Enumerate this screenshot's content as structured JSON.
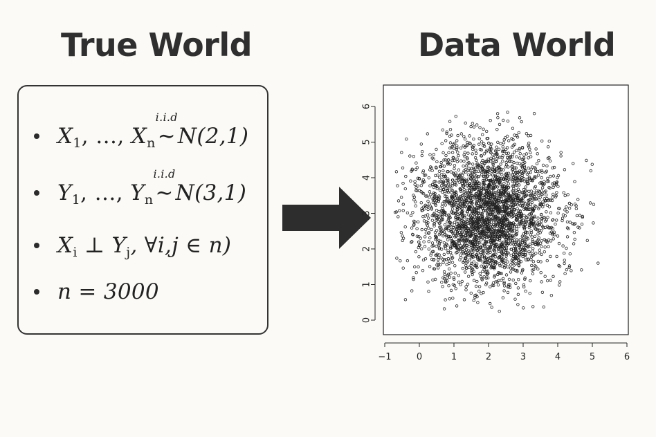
{
  "titles": {
    "left": "True World",
    "right": "Data World"
  },
  "bullets": [
    {
      "id": "x-dist",
      "lhs": "X",
      "sub1": "1",
      "ellipsis": ", …, ",
      "var2": "X",
      "sub2": "n",
      "iid": "i.i.d",
      "rel": "∼",
      "dist": "N(2,1)"
    },
    {
      "id": "y-dist",
      "lhs": "Y",
      "sub1": "1",
      "ellipsis": ", …, ",
      "var2": "Y",
      "sub2": "n",
      "iid": "i.i.d",
      "rel": "∼",
      "dist": "N(3,1)"
    },
    {
      "id": "independence",
      "text_a": "X",
      "sub_a": "i",
      "perp": " ⊥ ",
      "text_b": "Y",
      "sub_b": "j",
      "rest": ", ∀i,j ∈ n)"
    },
    {
      "id": "sample-size",
      "text": "n = 3000"
    }
  ],
  "chart_data": {
    "type": "scatter",
    "title": "",
    "xlabel": "",
    "ylabel": "",
    "xlim": [
      -1,
      6
    ],
    "ylim": [
      0,
      6
    ],
    "xticks": [
      "−1",
      "0",
      "1",
      "2",
      "3",
      "4",
      "5",
      "6"
    ],
    "yticks": [
      "0",
      "1",
      "2",
      "3",
      "4",
      "5",
      "6"
    ],
    "n_points": 3000,
    "x_mean": 2,
    "x_sd": 1,
    "y_mean": 3,
    "y_sd": 1,
    "marker": "open-circle",
    "marker_color": "#222222"
  }
}
